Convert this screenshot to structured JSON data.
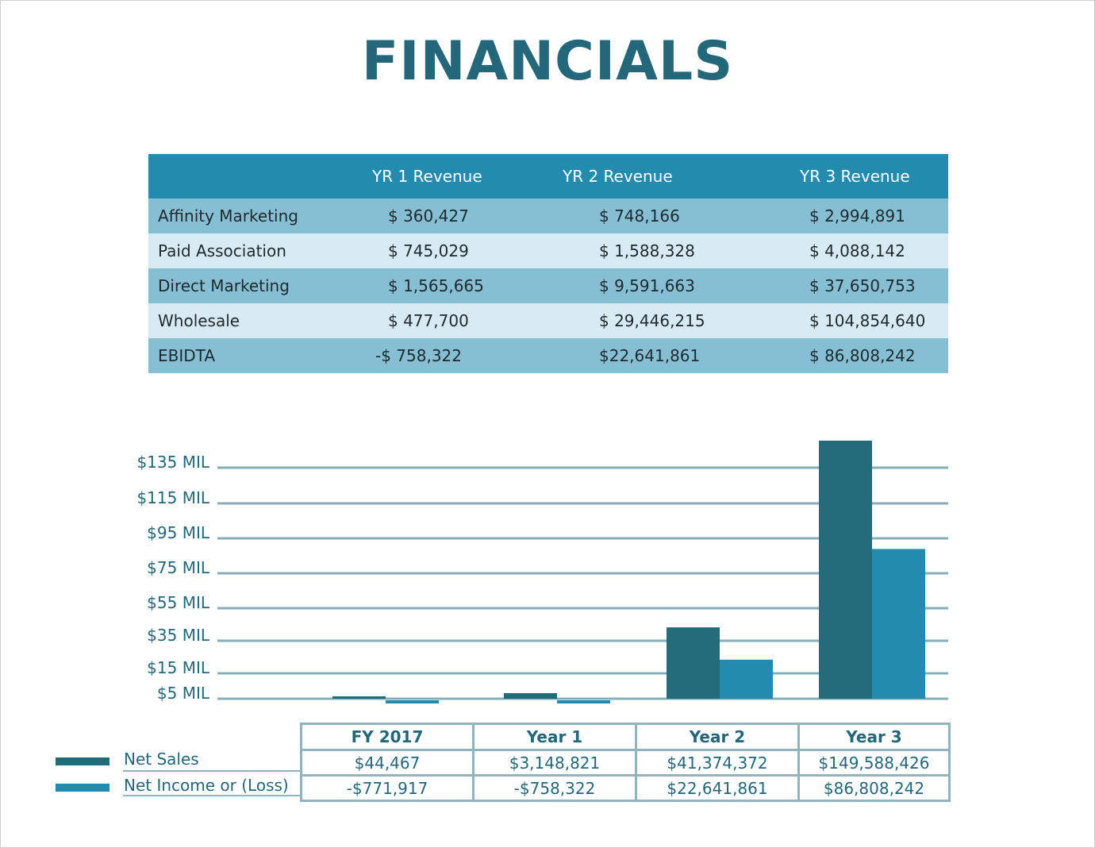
{
  "title": "FINANCIALS",
  "revenue_table": {
    "headers": [
      "",
      "YR 1 Revenue",
      "YR 2 Revenue",
      "YR 3 Revenue"
    ],
    "rows": [
      {
        "label": "Affinity Marketing",
        "yr1": "$ 360,427",
        "yr2": "$ 748,166",
        "yr3": "$ 2,994,891"
      },
      {
        "label": "Paid Association",
        "yr1": "$ 745,029",
        "yr2": "$ 1,588,328",
        "yr3": "$ 4,088,142"
      },
      {
        "label": "Direct Marketing",
        "yr1": "$ 1,565,665",
        "yr2": "$ 9,591,663",
        "yr3": "$ 37,650,753"
      },
      {
        "label": "Wholesale",
        "yr1": "$ 477,700",
        "yr2": "$ 29,446,215",
        "yr3": "$ 104,854,640"
      },
      {
        "label": "EBIDTA",
        "yr1": "-$ 758,322",
        "yr2": "$22,641,861",
        "yr3": "$ 86,808,242"
      }
    ]
  },
  "chart_data": {
    "type": "bar",
    "categories": [
      "FY 2017",
      "Year 1",
      "Year 2",
      "Year 3"
    ],
    "series": [
      {
        "name": "Net Sales",
        "color": "#236b7b",
        "values": [
          44467,
          3148821,
          41374372,
          149588426
        ],
        "labels": [
          "$44,467",
          "$3,148,821",
          "$41,374,372",
          "$149,588,426"
        ]
      },
      {
        "name": "Net Income or (Loss)",
        "color": "#238cae",
        "values": [
          -771917,
          -758322,
          22641861,
          86808242
        ],
        "labels": [
          "-$771,917",
          "-$758,322",
          "$22,641,861",
          "$86,808,242"
        ]
      }
    ],
    "y_ticks": [
      {
        "label": "$5 MIL",
        "value": 5000000
      },
      {
        "label": "$15 MIL",
        "value": 15000000
      },
      {
        "label": "$35 MIL",
        "value": 35000000
      },
      {
        "label": "$55 MIL",
        "value": 55000000
      },
      {
        "label": "$75 MIL",
        "value": 75000000
      },
      {
        "label": "$95 MIL",
        "value": 95000000
      },
      {
        "label": "$115 MIL",
        "value": 115000000
      },
      {
        "label": "$135 MIL",
        "value": 135000000
      }
    ],
    "grid": true,
    "gridline_color": "#86aeb9",
    "legend": "data table below chart"
  }
}
